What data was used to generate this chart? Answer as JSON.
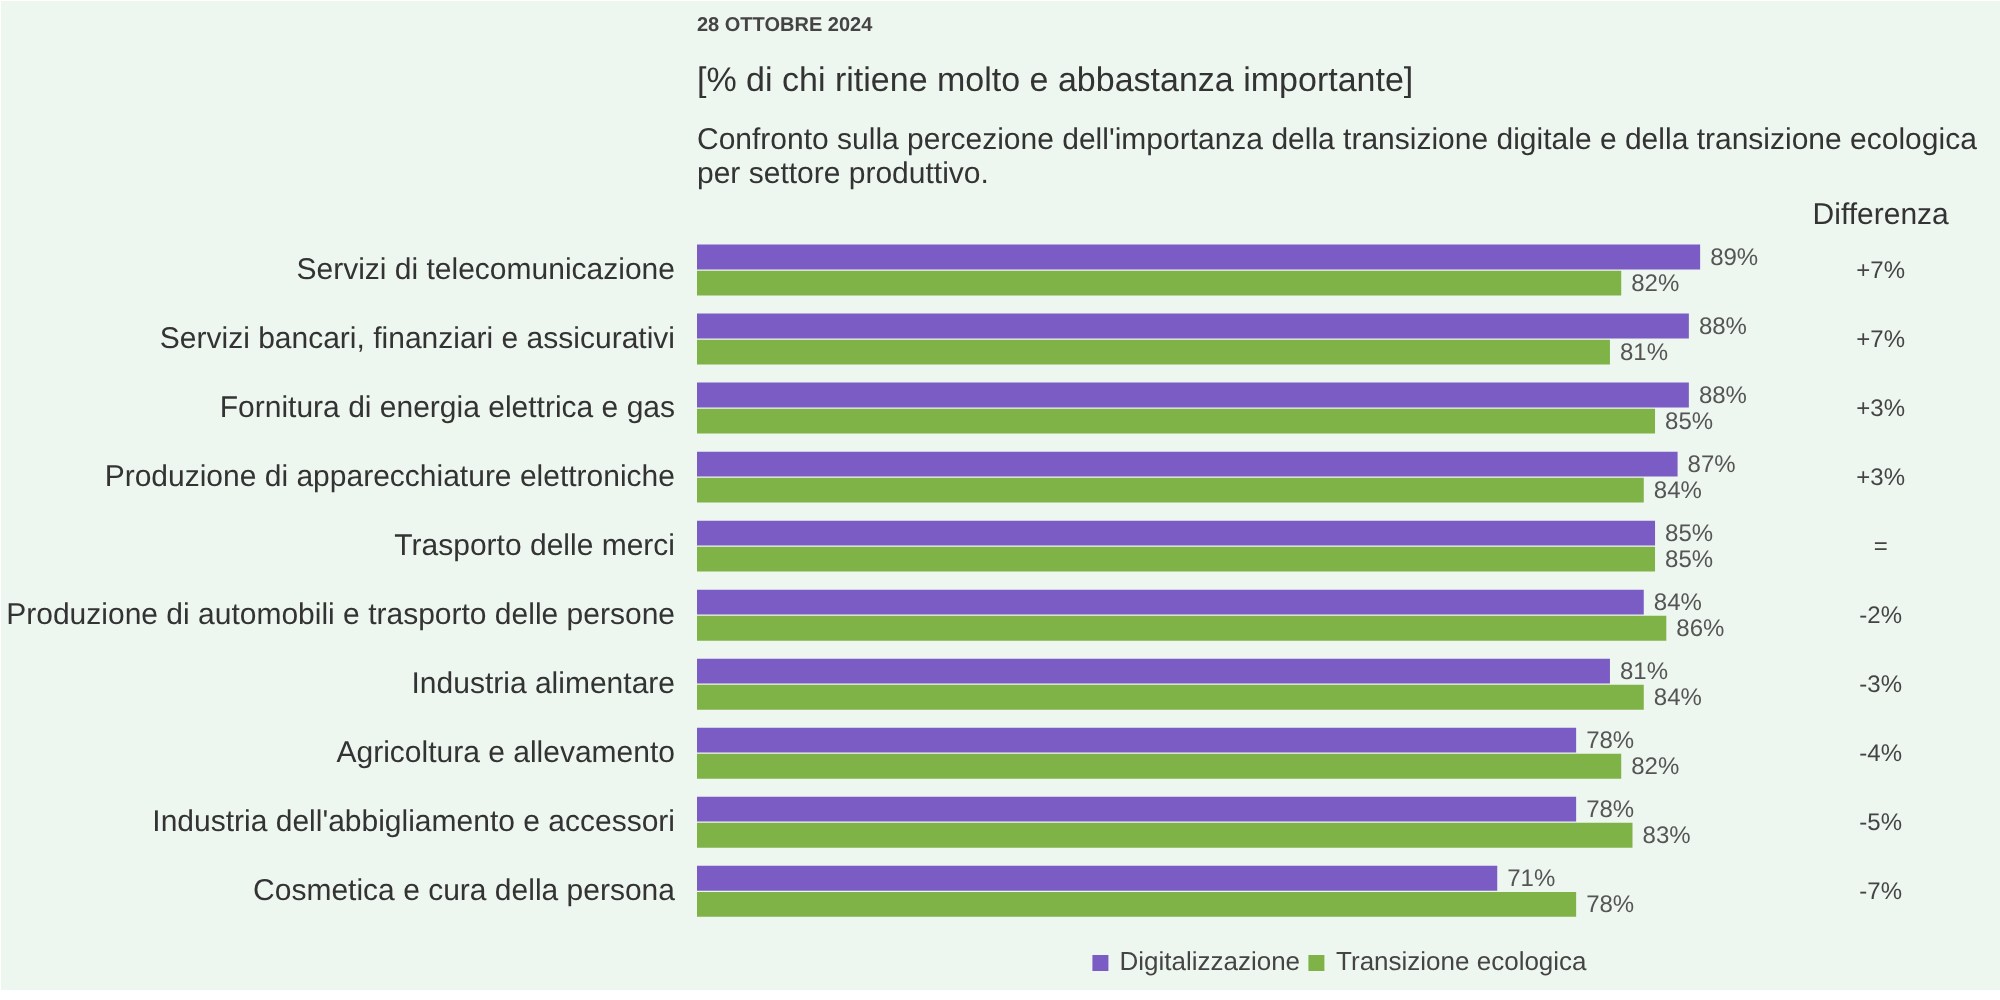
{
  "chart_data": {
    "type": "bar",
    "orientation": "horizontal",
    "title": "[% di chi ritiene molto e abbastanza importante]",
    "subtitle": "Confronto sulla percezione dell'importanza della transizione digitale e della transizione ecologica per settore produttivo.",
    "categories": [
      "Servizi di telecomunicazione",
      "Servizi bancari, finanziari e assicurativi",
      "Fornitura di energia elettrica e gas",
      "Produzione di apparecchiature elettroniche",
      "Trasporto delle merci",
      "Produzione di automobili e trasporto delle persone",
      "Industria alimentare",
      "Agricoltura e allevamento",
      "Industria dell'abbigliamento e accessori",
      "Cosmetica e cura della persona"
    ],
    "series": [
      {
        "name": "Digitalizzazione",
        "color": "#7b5cc4",
        "values": [
          89,
          88,
          88,
          87,
          85,
          84,
          81,
          78,
          78,
          71
        ],
        "value_labels": [
          "89%",
          "88%",
          "88%",
          "87%",
          "85%",
          "84%",
          "81%",
          "78%",
          "78%",
          "71%"
        ]
      },
      {
        "name": "Transizione ecologica",
        "color": "#7fb347",
        "values": [
          82,
          81,
          85,
          84,
          85,
          86,
          84,
          82,
          83,
          78
        ],
        "value_labels": [
          "82%",
          "81%",
          "85%",
          "84%",
          "85%",
          "86%",
          "84%",
          "82%",
          "83%",
          "78%"
        ]
      }
    ],
    "annotations": [
      "28 OTTOBRE 2024",
      "Differenza",
      "+7%",
      "+7%",
      "+3%",
      "+3%",
      "=",
      "-2%",
      "-3%",
      "-4%",
      "-5%",
      "-7%"
    ],
    "tick_labels": "y",
    "legend": "bottom",
    "grid": false
  }
}
